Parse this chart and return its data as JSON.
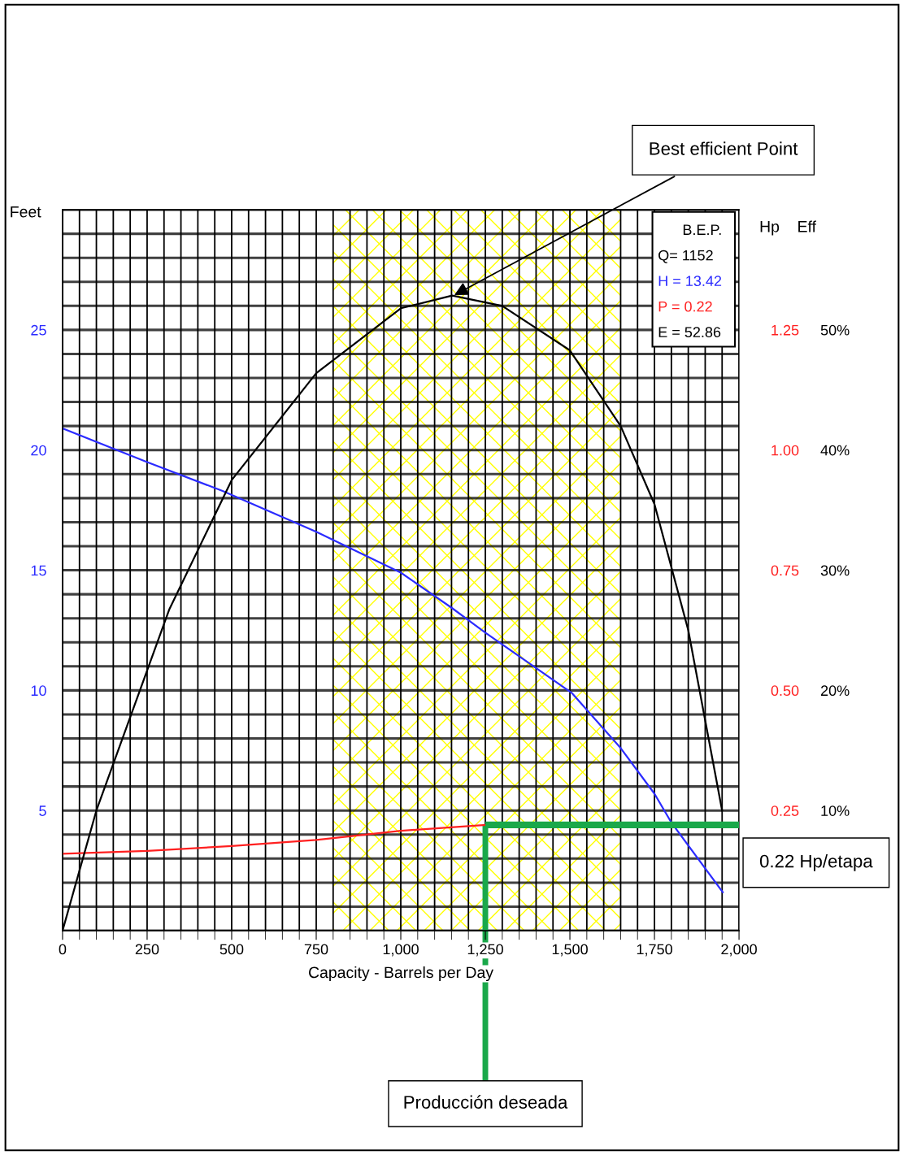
{
  "chart_data": {
    "type": "line",
    "xlabel": "Capacity - Barrels per Day",
    "ylabel": "Feet",
    "y2label": "Hp",
    "y3label": "Eff",
    "xlim": [
      0,
      2000
    ],
    "xticks": [
      0,
      250,
      500,
      750,
      {
        "value": 1000,
        "label": "1,000"
      },
      {
        "value": 1250,
        "label": "1,250"
      },
      {
        "value": 1500,
        "label": "1,500"
      },
      {
        "value": 1750,
        "label": "1,750"
      },
      {
        "value": 2000,
        "label": "2,000"
      }
    ],
    "ylim": [
      0,
      30
    ],
    "yticks": [
      5,
      10,
      15,
      20,
      25
    ],
    "y2lim": [
      0,
      1.5
    ],
    "y2ticks": [
      {
        "value": 0.25,
        "label": "0.25"
      },
      {
        "value": 0.5,
        "label": "0.50"
      },
      {
        "value": 0.75,
        "label": "0.75"
      },
      {
        "value": 1.0,
        "label": "1.00"
      },
      {
        "value": 1.25,
        "label": "1.25"
      }
    ],
    "y3lim": [
      0,
      60
    ],
    "y3ticks": [
      {
        "value": 10,
        "label": "10%"
      },
      {
        "value": 20,
        "label": "20%"
      },
      {
        "value": 30,
        "label": "30%"
      },
      {
        "value": 40,
        "label": "40%"
      },
      {
        "value": 50,
        "label": "50%"
      }
    ],
    "grid": true,
    "legend": false,
    "series": [
      {
        "color": "#2b2bff",
        "x": [
          0,
          250,
          473,
          750,
          1000,
          1152,
          1250,
          1505,
          1650,
          1750,
          1800,
          1952
        ],
        "values": [
          20.9,
          19.5,
          18.3,
          16.6,
          14.9,
          13.42,
          12.4,
          9.9,
          7.6,
          5.7,
          4.5,
          1.6
        ]
      },
      {
        "color": "#ff2020",
        "axis": "y2",
        "x": [
          0,
          250,
          500,
          750,
          1000,
          1250
        ],
        "values": [
          0.16,
          0.166,
          0.176,
          0.189,
          0.208,
          0.22
        ]
      },
      {
        "color": "#000000",
        "axis": "y3",
        "x": [
          0,
          100,
          315,
          500,
          750,
          1000,
          1152,
          1300,
          1500,
          1650,
          1750,
          1850,
          1950
        ],
        "values": [
          0,
          10,
          26.7,
          37.5,
          46.4,
          51.8,
          52.86,
          52,
          48.3,
          42,
          35.5,
          25,
          10
        ]
      }
    ],
    "bands": [
      {
        "axis": "x",
        "from": 800,
        "to": 1650,
        "color": "#ffff00"
      }
    ],
    "ref_lines": [
      {
        "axis": "y2",
        "value": 0.22,
        "label": "0.22 Hp/etapa",
        "color": "#1aa84a"
      },
      {
        "axis": "x",
        "value": 1250,
        "label": "Producción deseada",
        "color": "#1aa84a"
      }
    ],
    "annotations": [
      {
        "text": "Best efficient Point",
        "x": 1152,
        "y": 26.4
      },
      "B.E.P.",
      "Q= 1152",
      "H = 13.42",
      "P = 0.22",
      "E = 52.86"
    ]
  }
}
